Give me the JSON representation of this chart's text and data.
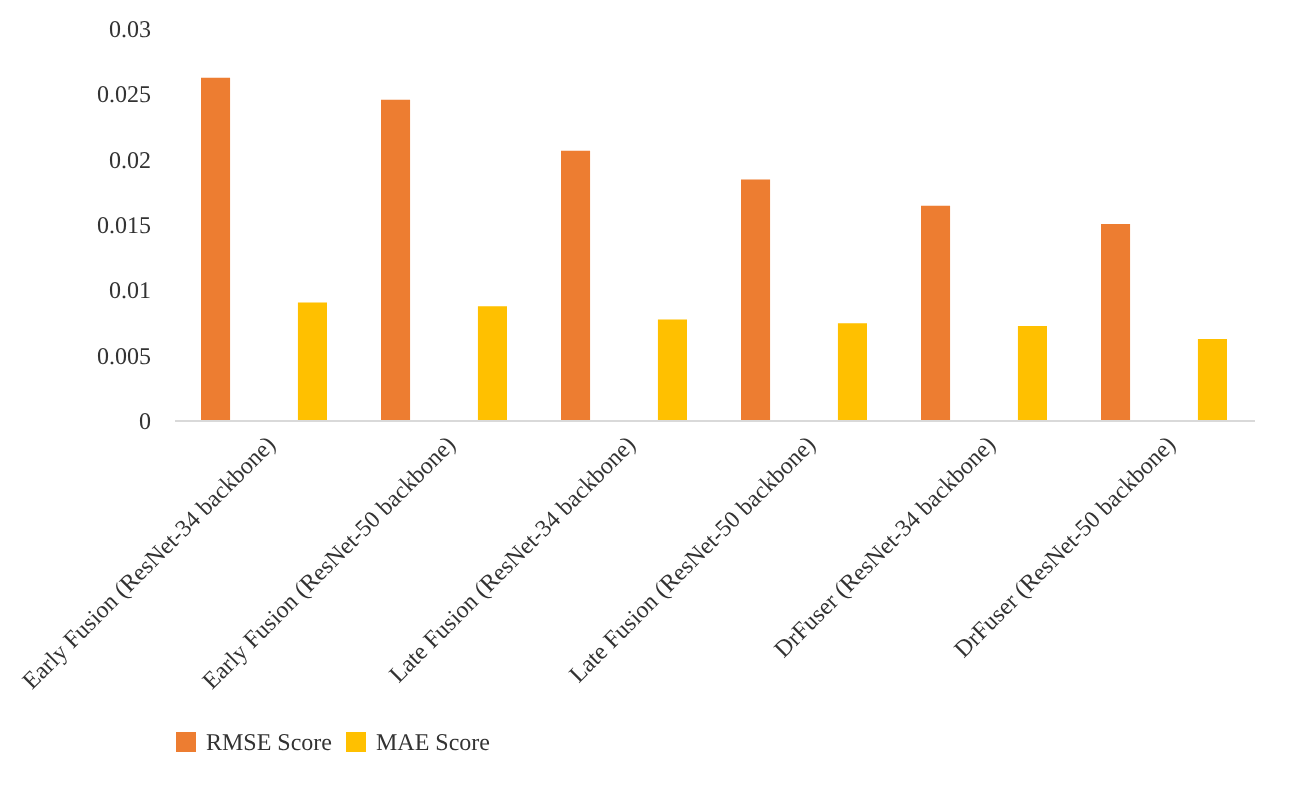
{
  "chart_data": {
    "type": "bar",
    "categories": [
      "Early Fusion (ResNet-34 backbone)",
      "Early Fusion (ResNet-50 backbone)",
      "Late Fusion (ResNet-34 backbone)",
      "Late Fusion (ResNet-50 backbone)",
      "DrFuser (ResNet-34 backbone)",
      "DrFuser (ResNet-50 backbone)"
    ],
    "series": [
      {
        "name": "RMSE Score",
        "color": "#ed7d31",
        "values": [
          0.0262,
          0.0245,
          0.0206,
          0.0184,
          0.0164,
          0.015
        ]
      },
      {
        "name": "MAE Score",
        "color": "#ffc000",
        "values": [
          0.009,
          0.0087,
          0.0077,
          0.0074,
          0.0072,
          0.0062
        ]
      }
    ],
    "ylim": [
      0,
      0.03
    ],
    "yticks": [
      0,
      0.005,
      0.01,
      0.015,
      0.02,
      0.025,
      0.03
    ],
    "grid": false,
    "legend": "bottom"
  }
}
